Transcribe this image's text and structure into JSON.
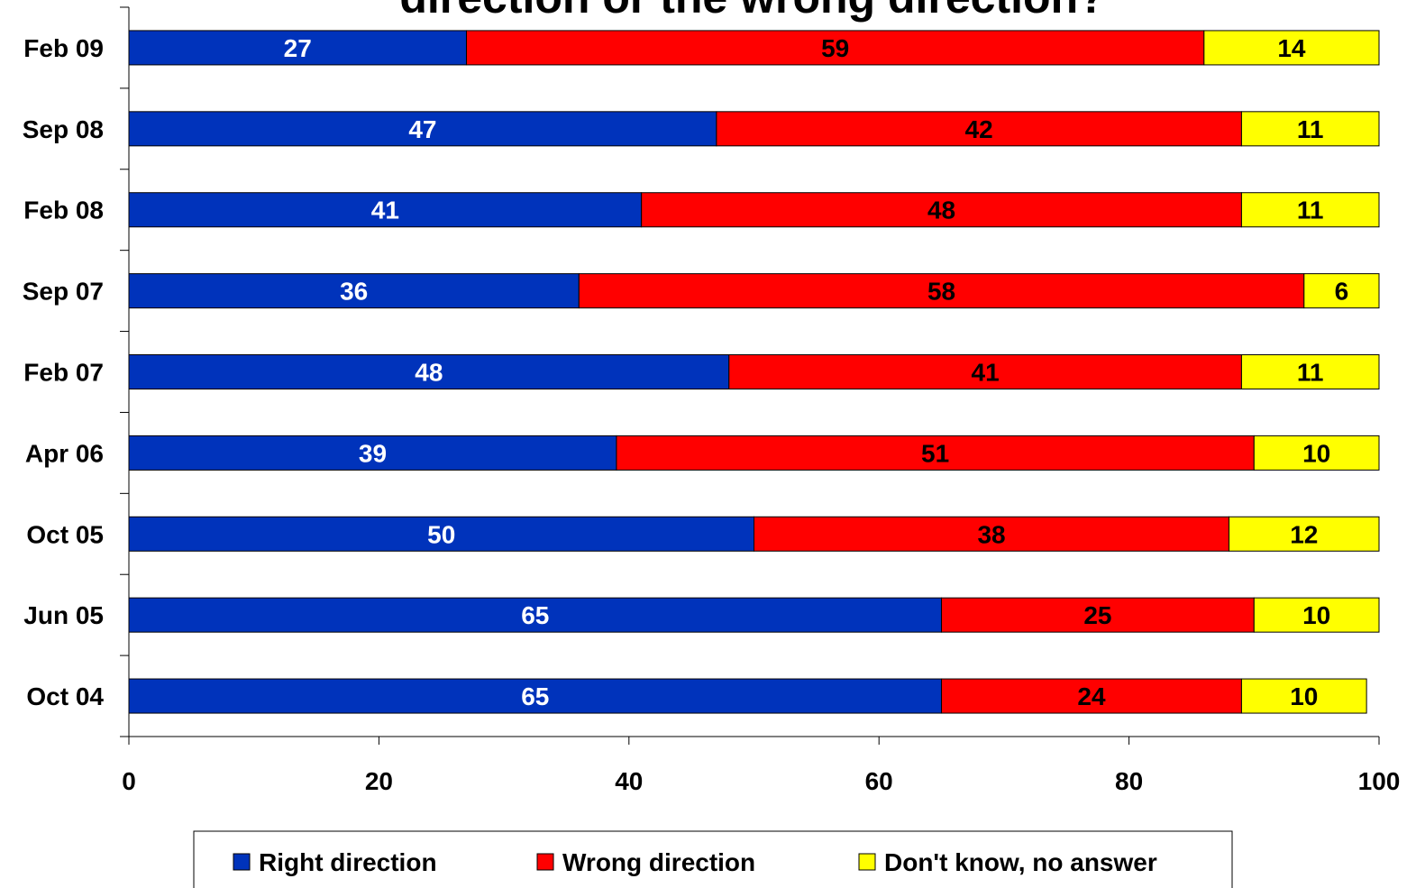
{
  "chart_data": {
    "type": "bar",
    "orientation": "horizontal",
    "stacked": true,
    "title": "direction or the wrong direction?",
    "categories": [
      "Feb 09",
      "Sep 08",
      "Feb 08",
      "Sep 07",
      "Feb 07",
      "Apr 06",
      "Oct 05",
      "Jun 05",
      "Oct 04"
    ],
    "series": [
      {
        "name": "Right direction",
        "values": [
          27,
          47,
          41,
          36,
          48,
          39,
          50,
          65,
          65
        ],
        "color": "#0033BB"
      },
      {
        "name": "Wrong direction",
        "values": [
          59,
          42,
          48,
          58,
          41,
          51,
          38,
          25,
          24
        ],
        "color": "#FF0000"
      },
      {
        "name": "Don't know, no answer",
        "values": [
          14,
          11,
          11,
          6,
          11,
          10,
          12,
          10,
          10
        ],
        "color": "#FFFF00"
      }
    ],
    "xlim": [
      0,
      100
    ],
    "xticks": [
      "0",
      "20",
      "40",
      "60",
      "80",
      "100"
    ],
    "xlabel": "",
    "ylabel": "",
    "grid": false,
    "legend": "bottom"
  }
}
